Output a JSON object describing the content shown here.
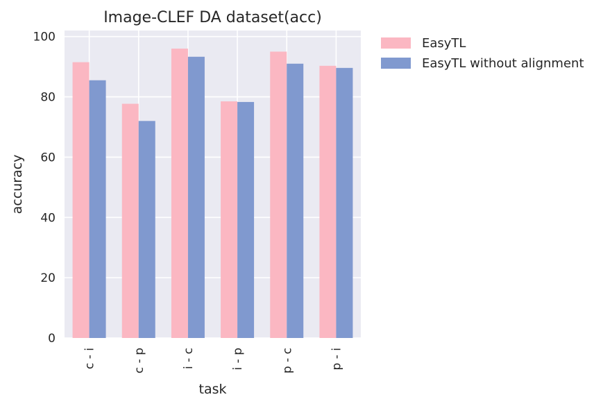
{
  "chart_data": {
    "type": "bar",
    "title": "Image-CLEF DA dataset(acc)",
    "xlabel": "task",
    "ylabel": "accuracy",
    "categories": [
      "c - i",
      "c - p",
      "i - c",
      "i - p",
      "p - c",
      "p - i"
    ],
    "series": [
      {
        "name": "EasyTL",
        "values": [
          91.5,
          77.7,
          96.0,
          78.5,
          95.0,
          90.3
        ],
        "color": "#fbb7c2"
      },
      {
        "name": "EasyTL without alignment",
        "values": [
          85.5,
          72.0,
          93.3,
          78.3,
          91.0,
          89.6
        ],
        "color": "#8099cf"
      }
    ],
    "ylim": [
      0,
      102
    ],
    "yticks": [
      0,
      20,
      40,
      60,
      80,
      100
    ],
    "grid": true,
    "legend_position": "outside-top-right",
    "background_color": "#eaeaf2",
    "grid_color": "#ffffff"
  }
}
